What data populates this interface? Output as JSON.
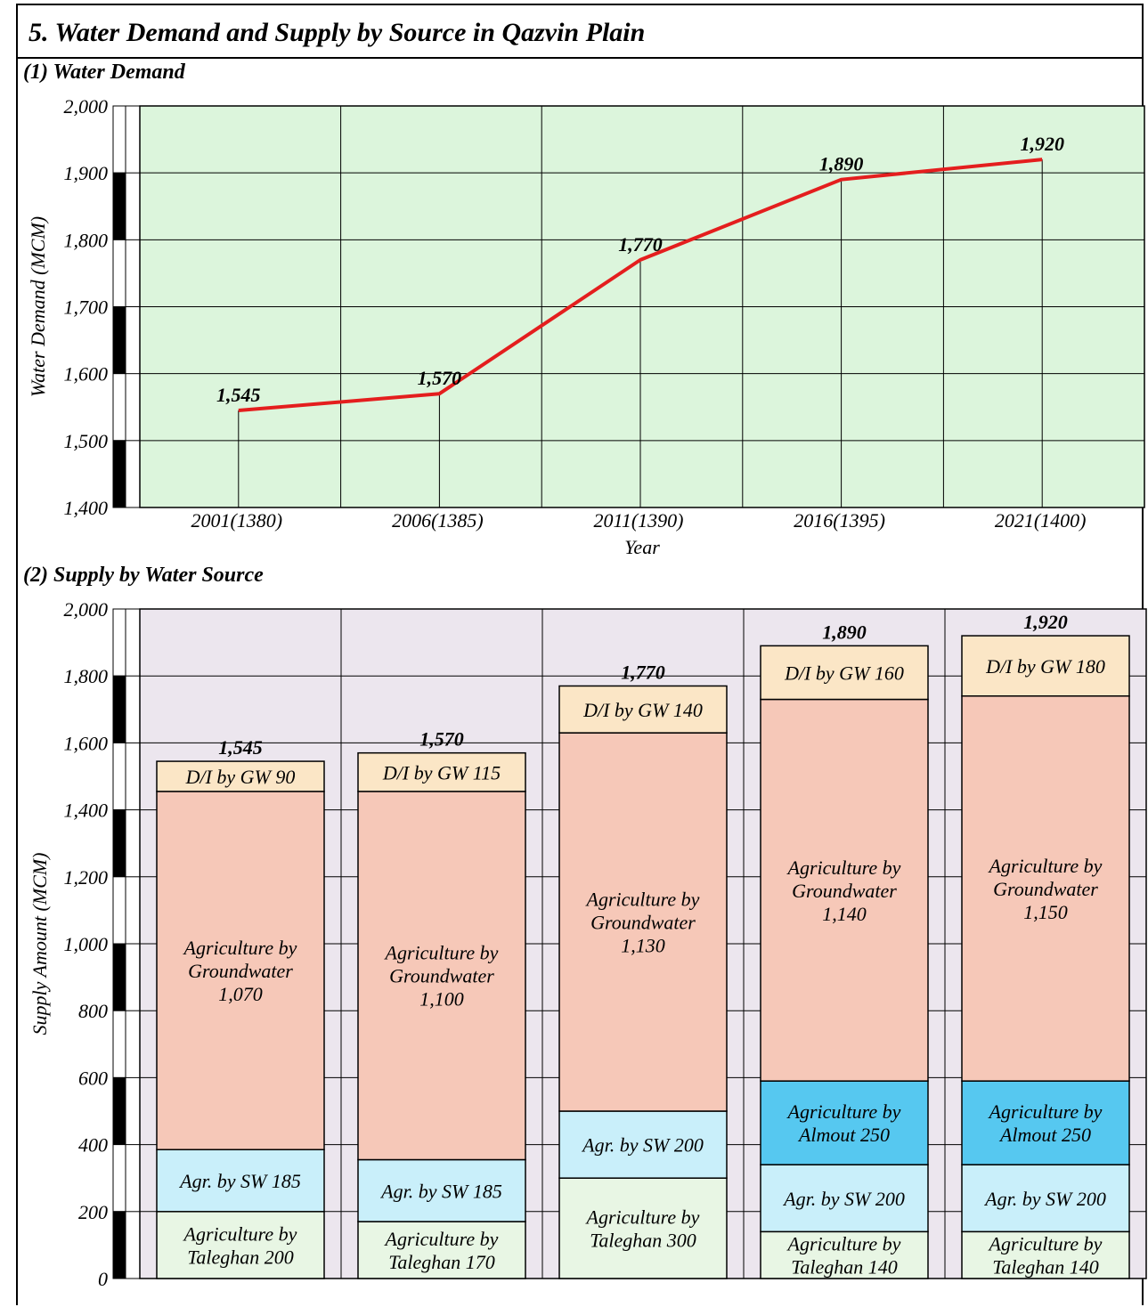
{
  "page": {
    "title": "5. Water Demand and Supply by Source in Qazvin Plain"
  },
  "chart_data": [
    {
      "type": "line",
      "section_title": "(1) Water Demand",
      "x": [
        "2001(1380)",
        "2006(1385)",
        "2011(1390)",
        "2016(1395)",
        "2021(1400)"
      ],
      "series": [
        {
          "values": [
            1545,
            1570,
            1770,
            1890,
            1920
          ],
          "color": "#e41e1e"
        }
      ],
      "data_labels": [
        "1,545",
        "1,570",
        "1,770",
        "1,890",
        "1,920"
      ],
      "xlabel": "Year",
      "ylabel": "Water Demand (MCM)",
      "ylim": [
        1400,
        2000
      ],
      "yticks": [
        {
          "value": 2000,
          "label": "2,000"
        },
        {
          "value": 1900,
          "label": "1,900"
        },
        {
          "value": 1800,
          "label": "1,800"
        },
        {
          "value": 1700,
          "label": "1,700"
        },
        {
          "value": 1600,
          "label": "1,600"
        },
        {
          "value": 1500,
          "label": "1,500"
        },
        {
          "value": 1400,
          "label": "1,400"
        }
      ],
      "grid": true,
      "background_color": "#dcf5dc"
    },
    {
      "type": "bar",
      "stacked": true,
      "section_title": "(2) Supply by Water Source",
      "categories": [
        "2001(1380)",
        "2006(1385)",
        "2011(1390)",
        "2016(1395)",
        "2021(1400)"
      ],
      "ylabel": "Supply Amount (MCM)",
      "ylim": [
        0,
        2000
      ],
      "yticks": [
        {
          "value": 2000,
          "label": "2,000"
        },
        {
          "value": 1800,
          "label": "1,800"
        },
        {
          "value": 1600,
          "label": "1,600"
        },
        {
          "value": 1400,
          "label": "1,400"
        },
        {
          "value": 1200,
          "label": "1,200"
        },
        {
          "value": 1000,
          "label": "1,000"
        },
        {
          "value": 800,
          "label": "800"
        },
        {
          "value": 600,
          "label": "600"
        },
        {
          "value": 400,
          "label": "400"
        },
        {
          "value": 200,
          "label": "200"
        },
        {
          "value": 0,
          "label": "0"
        }
      ],
      "grid": true,
      "background_color": "#ece6ee",
      "totals": [
        {
          "value": 1545,
          "label": "1,545"
        },
        {
          "value": 1570,
          "label": "1,570"
        },
        {
          "value": 1770,
          "label": "1,770"
        },
        {
          "value": 1890,
          "label": "1,890"
        },
        {
          "value": 1920,
          "label": "1,920"
        }
      ],
      "stacks": [
        [
          {
            "value": 200,
            "color": "#e8f6e4",
            "label": [
              "Agriculture by",
              "Taleghan 200"
            ]
          },
          {
            "value": 185,
            "color": "#c9effa",
            "label": [
              "Agr. by SW 185"
            ]
          },
          {
            "value": 1070,
            "color": "#f6c8b8",
            "label": [
              "Agriculture by",
              "Groundwater",
              "1,070"
            ]
          },
          {
            "value": 90,
            "color": "#fbe6c6",
            "label": [
              "D/I by GW 90"
            ]
          }
        ],
        [
          {
            "value": 170,
            "color": "#e8f6e4",
            "label": [
              "Agriculture by",
              "Taleghan 170"
            ]
          },
          {
            "value": 185,
            "color": "#c9effa",
            "label": [
              "Agr. by SW 185"
            ]
          },
          {
            "value": 1100,
            "color": "#f6c8b8",
            "label": [
              "Agriculture by",
              "Groundwater",
              "1,100"
            ]
          },
          {
            "value": 115,
            "color": "#fbe6c6",
            "label": [
              "D/I by GW 115"
            ]
          }
        ],
        [
          {
            "value": 300,
            "color": "#e8f6e4",
            "label": [
              "Agriculture by",
              "Taleghan 300"
            ]
          },
          {
            "value": 200,
            "color": "#c9effa",
            "label": [
              "Agr. by SW 200"
            ]
          },
          {
            "value": 1130,
            "color": "#f6c8b8",
            "label": [
              "Agriculture by",
              "Groundwater",
              "1,130"
            ]
          },
          {
            "value": 140,
            "color": "#fbe6c6",
            "label": [
              "D/I by GW 140"
            ]
          }
        ],
        [
          {
            "value": 140,
            "color": "#e8f6e4",
            "label": [
              "Agriculture by",
              "Taleghan 140"
            ]
          },
          {
            "value": 200,
            "color": "#c9effa",
            "label": [
              "Agr. by SW 200"
            ]
          },
          {
            "value": 250,
            "color": "#56c8f0",
            "label": [
              "Agriculture by",
              "Almout 250"
            ]
          },
          {
            "value": 1140,
            "color": "#f6c8b8",
            "label": [
              "Agriculture by",
              "Groundwater",
              "1,140"
            ]
          },
          {
            "value": 160,
            "color": "#fbe6c6",
            "label": [
              "D/I by GW 160"
            ]
          }
        ],
        [
          {
            "value": 140,
            "color": "#e8f6e4",
            "label": [
              "Agriculture by",
              "Taleghan 140"
            ]
          },
          {
            "value": 200,
            "color": "#c9effa",
            "label": [
              "Agr. by SW 200"
            ]
          },
          {
            "value": 250,
            "color": "#56c8f0",
            "label": [
              "Agriculture by",
              "Almout 250"
            ]
          },
          {
            "value": 1150,
            "color": "#f6c8b8",
            "label": [
              "Agriculture by",
              "Groundwater",
              "1,150"
            ]
          },
          {
            "value": 180,
            "color": "#fbe6c6",
            "label": [
              "D/I by GW 180"
            ]
          }
        ]
      ]
    }
  ]
}
